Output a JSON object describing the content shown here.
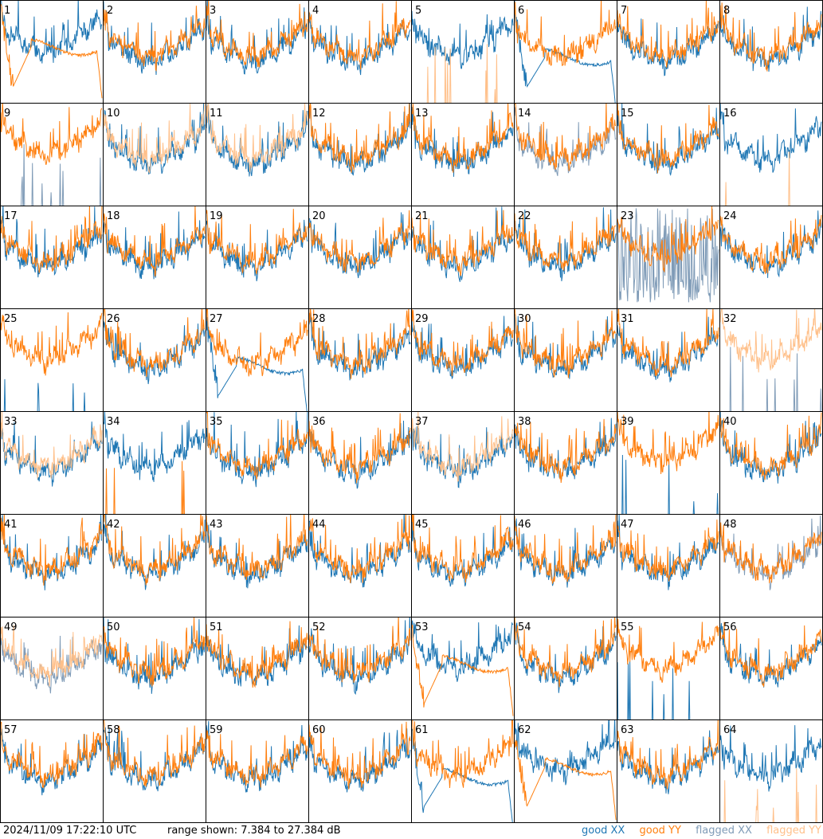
{
  "footer": {
    "timestamp": "2024/11/09 17:22:10 UTC",
    "range_text": "range shown: 7.384 to 27.384 dB"
  },
  "legend": {
    "items": [
      {
        "label": "good XX",
        "color": "#1f77b4"
      },
      {
        "label": "good YY",
        "color": "#ff7f0e"
      },
      {
        "label": "flagged XX",
        "color": "#7f9bb7"
      },
      {
        "label": "flagged YY",
        "color": "#ffc08a"
      }
    ]
  },
  "chart_data": {
    "type": "line",
    "ylim": [
      7.384,
      27.384
    ],
    "ylabel_units": "dB",
    "panels": [
      {
        "label": "1",
        "xx": "good",
        "yy": "good",
        "style": "bad_yy"
      },
      {
        "label": "2",
        "xx": "good",
        "yy": "good",
        "style": "normal"
      },
      {
        "label": "3",
        "xx": "good",
        "yy": "good",
        "style": "normal"
      },
      {
        "label": "4",
        "xx": "good",
        "yy": "good",
        "style": "normal"
      },
      {
        "label": "5",
        "xx": "good",
        "yy": "flagged",
        "style": "spikes_yy"
      },
      {
        "label": "6",
        "xx": "good",
        "yy": "good",
        "style": "bad_xx"
      },
      {
        "label": "7",
        "xx": "good",
        "yy": "good",
        "style": "normal"
      },
      {
        "label": "8",
        "xx": "good",
        "yy": "good",
        "style": "normal"
      },
      {
        "label": "9",
        "xx": "flagged",
        "yy": "good",
        "style": "spikes_xx"
      },
      {
        "label": "10",
        "xx": "good",
        "yy": "flagged",
        "style": "normal"
      },
      {
        "label": "11",
        "xx": "good",
        "yy": "flagged",
        "style": "normal"
      },
      {
        "label": "12",
        "xx": "good",
        "yy": "good",
        "style": "normal"
      },
      {
        "label": "13",
        "xx": "good",
        "yy": "good",
        "style": "normal"
      },
      {
        "label": "14",
        "xx": "flagged",
        "yy": "good",
        "style": "normal"
      },
      {
        "label": "15",
        "xx": "good",
        "yy": "good",
        "style": "normal"
      },
      {
        "label": "16",
        "xx": "good",
        "yy": "flagged",
        "style": "spikes_yy"
      },
      {
        "label": "17",
        "xx": "good",
        "yy": "good",
        "style": "normal"
      },
      {
        "label": "18",
        "xx": "good",
        "yy": "good",
        "style": "normal"
      },
      {
        "label": "19",
        "xx": "good",
        "yy": "good",
        "style": "normal"
      },
      {
        "label": "20",
        "xx": "good",
        "yy": "good",
        "style": "normal"
      },
      {
        "label": "21",
        "xx": "good",
        "yy": "good",
        "style": "normal"
      },
      {
        "label": "22",
        "xx": "good",
        "yy": "good",
        "style": "normal"
      },
      {
        "label": "23",
        "xx": "flagged",
        "yy": "good",
        "style": "noisy_xx"
      },
      {
        "label": "24",
        "xx": "good",
        "yy": "good",
        "style": "normal"
      },
      {
        "label": "25",
        "xx": "good",
        "yy": "good",
        "style": "spikes_xx"
      },
      {
        "label": "26",
        "xx": "good",
        "yy": "good",
        "style": "normal"
      },
      {
        "label": "27",
        "xx": "good",
        "yy": "good",
        "style": "bad_xx"
      },
      {
        "label": "28",
        "xx": "good",
        "yy": "good",
        "style": "normal"
      },
      {
        "label": "29",
        "xx": "good",
        "yy": "good",
        "style": "normal"
      },
      {
        "label": "30",
        "xx": "good",
        "yy": "good",
        "style": "normal"
      },
      {
        "label": "31",
        "xx": "good",
        "yy": "good",
        "style": "normal"
      },
      {
        "label": "32",
        "xx": "flagged",
        "yy": "flagged",
        "style": "spikes_xx"
      },
      {
        "label": "33",
        "xx": "good",
        "yy": "flagged",
        "style": "normal"
      },
      {
        "label": "34",
        "xx": "good",
        "yy": "good",
        "style": "spikes_yy"
      },
      {
        "label": "35",
        "xx": "good",
        "yy": "good",
        "style": "normal"
      },
      {
        "label": "36",
        "xx": "good",
        "yy": "good",
        "style": "normal"
      },
      {
        "label": "37",
        "xx": "good",
        "yy": "flagged",
        "style": "normal"
      },
      {
        "label": "38",
        "xx": "good",
        "yy": "good",
        "style": "normal"
      },
      {
        "label": "39",
        "xx": "good",
        "yy": "good",
        "style": "spikes_xx"
      },
      {
        "label": "40",
        "xx": "good",
        "yy": "good",
        "style": "normal"
      },
      {
        "label": "41",
        "xx": "good",
        "yy": "good",
        "style": "normal"
      },
      {
        "label": "42",
        "xx": "good",
        "yy": "good",
        "style": "normal"
      },
      {
        "label": "43",
        "xx": "good",
        "yy": "good",
        "style": "normal"
      },
      {
        "label": "44",
        "xx": "good",
        "yy": "good",
        "style": "normal"
      },
      {
        "label": "45",
        "xx": "good",
        "yy": "good",
        "style": "normal"
      },
      {
        "label": "46",
        "xx": "good",
        "yy": "good",
        "style": "normal"
      },
      {
        "label": "47",
        "xx": "good",
        "yy": "good",
        "style": "normal"
      },
      {
        "label": "48",
        "xx": "flagged",
        "yy": "good",
        "style": "normal"
      },
      {
        "label": "49",
        "xx": "flagged",
        "yy": "flagged",
        "style": "normal"
      },
      {
        "label": "50",
        "xx": "good",
        "yy": "good",
        "style": "normal"
      },
      {
        "label": "51",
        "xx": "good",
        "yy": "good",
        "style": "normal"
      },
      {
        "label": "52",
        "xx": "good",
        "yy": "good",
        "style": "normal"
      },
      {
        "label": "53",
        "xx": "good",
        "yy": "good",
        "style": "bad_yy"
      },
      {
        "label": "54",
        "xx": "good",
        "yy": "good",
        "style": "normal"
      },
      {
        "label": "55",
        "xx": "good",
        "yy": "good",
        "style": "spikes_xx"
      },
      {
        "label": "56",
        "xx": "good",
        "yy": "good",
        "style": "normal"
      },
      {
        "label": "57",
        "xx": "good",
        "yy": "good",
        "style": "normal"
      },
      {
        "label": "58",
        "xx": "good",
        "yy": "good",
        "style": "normal"
      },
      {
        "label": "59",
        "xx": "good",
        "yy": "good",
        "style": "normal"
      },
      {
        "label": "60",
        "xx": "good",
        "yy": "good",
        "style": "normal"
      },
      {
        "label": "61",
        "xx": "good",
        "yy": "good",
        "style": "bad_xx"
      },
      {
        "label": "62",
        "xx": "good",
        "yy": "good",
        "style": "bad_yy"
      },
      {
        "label": "63",
        "xx": "good",
        "yy": "good",
        "style": "normal"
      },
      {
        "label": "64",
        "xx": "good",
        "yy": "flagged",
        "style": "spikes_yy"
      }
    ]
  }
}
